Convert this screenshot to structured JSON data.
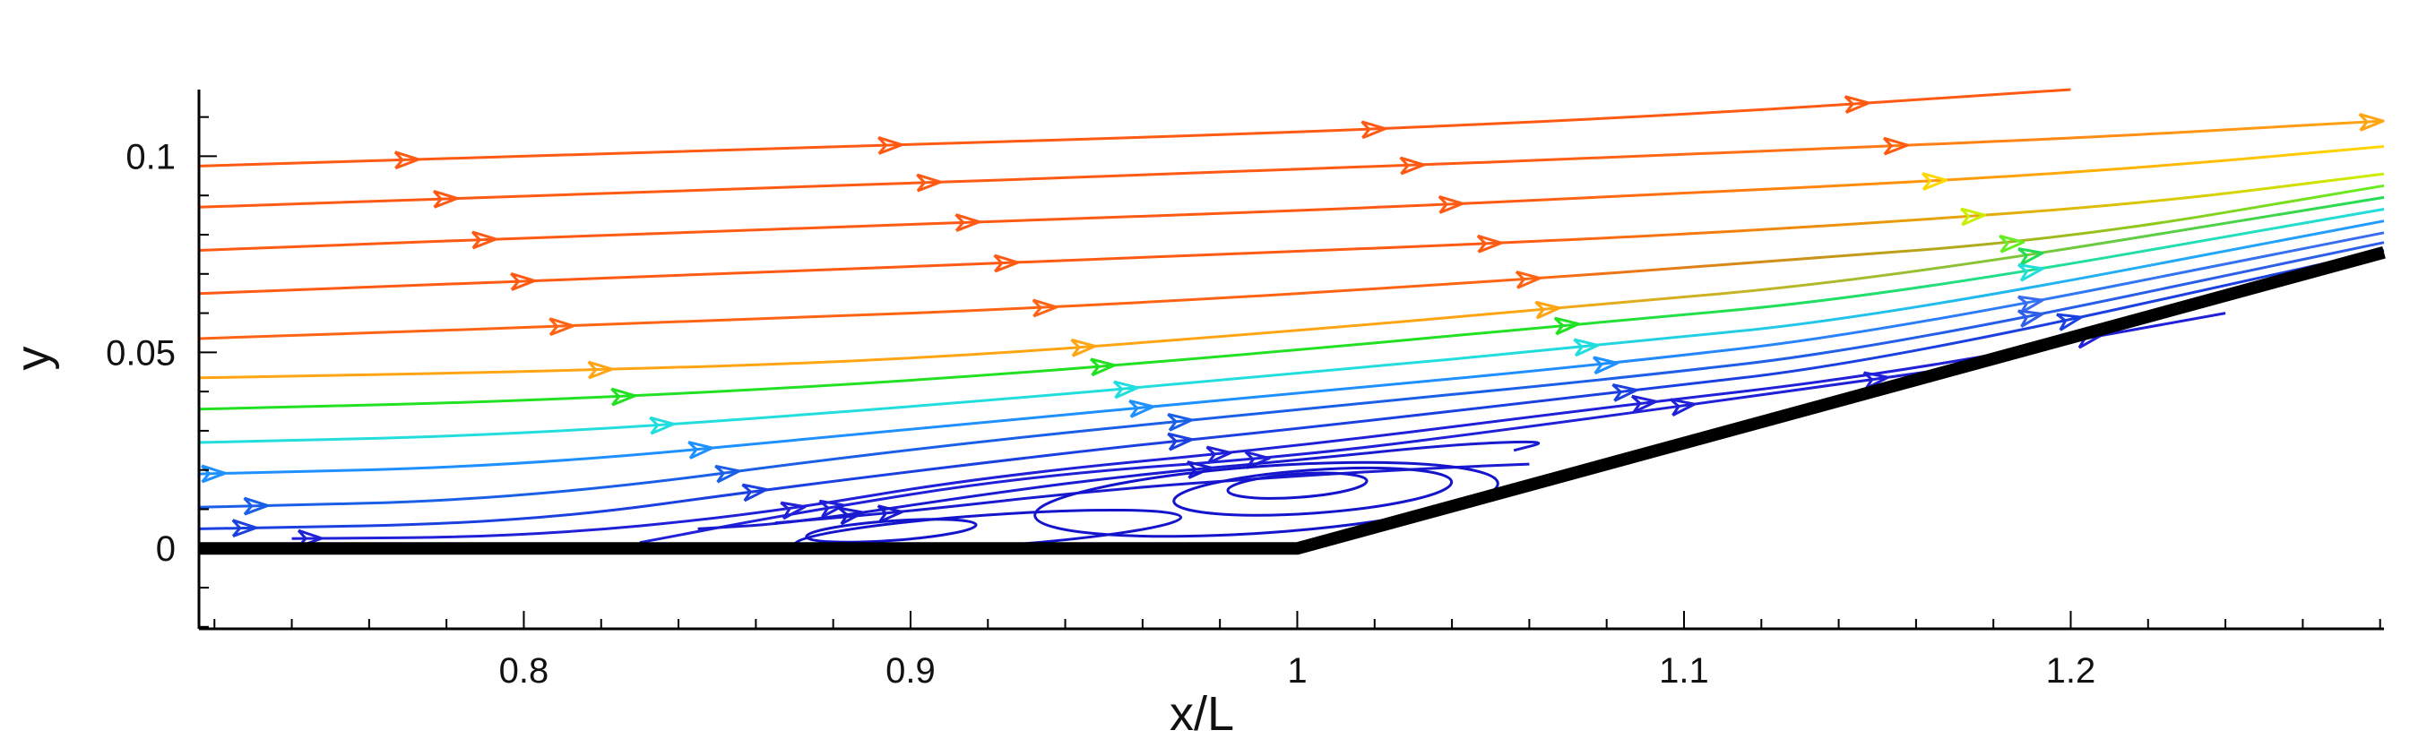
{
  "chart_data": {
    "type": "streamline",
    "title": "",
    "xlabel": "x/L",
    "ylabel": "y",
    "xlim": [
      0.716,
      1.281
    ],
    "ylim": [
      -0.0205,
      0.117
    ],
    "x_ticks": [
      {
        "value": 0.8,
        "label": "0.8"
      },
      {
        "value": 0.9,
        "label": "0.9"
      },
      {
        "value": 1.0,
        "label": "1"
      },
      {
        "value": 1.1,
        "label": "1.1"
      },
      {
        "value": 1.2,
        "label": "1.2"
      }
    ],
    "y_ticks": [
      {
        "value": 0.0,
        "label": "0"
      },
      {
        "value": 0.05,
        "label": "0.05"
      },
      {
        "value": 0.1,
        "label": "0.1"
      }
    ],
    "x_minor_step": 0.02,
    "y_minor_step": 0.01,
    "wall": [
      [
        0.716,
        0.0
      ],
      [
        1.0,
        0.0
      ],
      [
        1.281,
        0.0755
      ]
    ],
    "streamlines": [
      {
        "color": "#ff5a14",
        "points": [
          [
            0.716,
            0.0975
          ],
          [
            0.85,
            0.1015
          ],
          [
            1.0,
            0.106
          ],
          [
            1.1,
            0.1105
          ],
          [
            1.2,
            0.117
          ]
        ],
        "arrows": [
          0.77,
          0.895,
          1.02,
          1.145
        ]
      },
      {
        "color": "#ff5a14",
        "points": [
          [
            0.716,
            0.087
          ],
          [
            0.85,
            0.0915
          ],
          [
            1.0,
            0.0965
          ],
          [
            1.1,
            0.1005
          ],
          [
            1.2,
            0.1045
          ],
          [
            1.262,
            0.108
          ],
          [
            1.281,
            0.109
          ]
        ],
        "color_end": "#ffa514",
        "arrows": [
          0.78,
          0.905,
          1.03,
          1.155,
          1.278
        ]
      },
      {
        "color": "#ff5a14",
        "points": [
          [
            0.716,
            0.076
          ],
          [
            0.85,
            0.081
          ],
          [
            1.0,
            0.086
          ],
          [
            1.1,
            0.0905
          ],
          [
            1.18,
            0.0945
          ],
          [
            1.23,
            0.098
          ],
          [
            1.281,
            0.1025
          ]
        ],
        "color_end": "#ffd700",
        "arrows": [
          0.79,
          0.915,
          1.04,
          1.165
        ]
      },
      {
        "color": "#ff5a14",
        "points": [
          [
            0.716,
            0.065
          ],
          [
            0.85,
            0.07
          ],
          [
            0.97,
            0.0745
          ],
          [
            1.08,
            0.079
          ],
          [
            1.15,
            0.083
          ],
          [
            1.22,
            0.088
          ],
          [
            1.281,
            0.0955
          ]
        ],
        "color_end": "#ccee00",
        "arrows": [
          0.8,
          0.925,
          1.05,
          1.175
        ]
      },
      {
        "color": "#ff6414",
        "points": [
          [
            0.716,
            0.0535
          ],
          [
            0.85,
            0.058
          ],
          [
            0.95,
            0.062
          ],
          [
            1.05,
            0.068
          ],
          [
            1.12,
            0.073
          ],
          [
            1.2,
            0.079
          ],
          [
            1.281,
            0.0925
          ]
        ],
        "color_end": "#66ee22",
        "arrows": [
          0.81,
          0.935,
          1.06,
          1.185
        ]
      },
      {
        "color": "#ffa514",
        "points": [
          [
            0.716,
            0.0435
          ],
          [
            0.8,
            0.045
          ],
          [
            0.9,
            0.048
          ],
          [
            1.0,
            0.0555
          ],
          [
            1.07,
            0.0615
          ],
          [
            1.15,
            0.0685
          ],
          [
            1.281,
            0.0895
          ]
        ],
        "color_end": "#22dd55",
        "arrows": [
          0.82,
          0.945,
          1.065,
          1.19
        ]
      },
      {
        "color": "#22e022",
        "points": [
          [
            0.716,
            0.0355
          ],
          [
            0.8,
            0.0375
          ],
          [
            0.9,
            0.0425
          ],
          [
            1.0,
            0.0505
          ],
          [
            1.07,
            0.057
          ],
          [
            1.15,
            0.064
          ],
          [
            1.281,
            0.0865
          ]
        ],
        "color_end": "#22dddd",
        "arrows": [
          0.826,
          0.95,
          1.07,
          1.19
        ]
      },
      {
        "color": "#22dddd",
        "points": [
          [
            0.716,
            0.027
          ],
          [
            0.8,
            0.029
          ],
          [
            0.9,
            0.036
          ],
          [
            1.0,
            0.0445
          ],
          [
            1.08,
            0.052
          ],
          [
            1.15,
            0.059
          ],
          [
            1.281,
            0.0835
          ]
        ],
        "color_end": "#2299ff",
        "arrows": [
          0.836,
          0.956,
          1.075
        ]
      },
      {
        "color": "#1e90ff",
        "points": [
          [
            0.716,
            0.019
          ],
          [
            0.8,
            0.021
          ],
          [
            0.9,
            0.0305
          ],
          [
            1.0,
            0.0395
          ],
          [
            1.08,
            0.047
          ],
          [
            1.15,
            0.055
          ],
          [
            1.281,
            0.0805
          ]
        ],
        "color_end": "#3a6bef",
        "arrows": [
          0.72,
          0.846,
          0.96,
          1.08,
          1.19
        ]
      },
      {
        "color": "#1a5fe8",
        "points": [
          [
            0.716,
            0.0105
          ],
          [
            0.8,
            0.0125
          ],
          [
            0.9,
            0.0255
          ],
          [
            1.0,
            0.0355
          ],
          [
            1.08,
            0.043
          ],
          [
            1.15,
            0.051
          ],
          [
            1.281,
            0.078
          ]
        ],
        "color_end": "#2f5ee8",
        "arrows": [
          0.731,
          0.853,
          0.97,
          1.19
        ]
      },
      {
        "color": "#1a40e0",
        "points": [
          [
            0.716,
            0.005
          ],
          [
            0.8,
            0.0065
          ],
          [
            0.87,
            0.016
          ],
          [
            0.95,
            0.0255
          ],
          [
            1.0,
            0.0305
          ],
          [
            1.08,
            0.0395
          ],
          [
            1.15,
            0.0475
          ],
          [
            1.281,
            0.076
          ]
        ],
        "arrows": [
          0.728,
          0.86,
          0.97,
          1.085,
          1.2
        ]
      },
      {
        "color": "#2020d8",
        "points": [
          [
            0.74,
            0.0025
          ],
          [
            0.8,
            0.003
          ],
          [
            0.86,
            0.0085
          ],
          [
            0.92,
            0.0185
          ],
          [
            1.0,
            0.026
          ],
          [
            1.08,
            0.036
          ],
          [
            1.15,
            0.044
          ],
          [
            1.24,
            0.06
          ]
        ],
        "arrows": [
          0.745,
          0.87,
          0.98,
          1.09,
          1.205
        ]
      },
      {
        "color": "#2020d8",
        "points": [
          [
            0.83,
            0.0015
          ],
          [
            0.87,
            0.009
          ],
          [
            0.93,
            0.0185
          ],
          [
            1.0,
            0.0235
          ],
          [
            1.06,
            0.031
          ],
          [
            1.13,
            0.0405
          ],
          [
            1.17,
            0.046
          ]
        ],
        "arrows": [
          0.88,
          0.99,
          1.1,
          1.15
        ]
      },
      {
        "color": "#1a1ad0",
        "points": [
          [
            0.845,
            0.005
          ],
          [
            0.87,
            0.0065
          ],
          [
            0.92,
            0.014
          ],
          [
            0.96,
            0.019
          ],
          [
            1.0,
            0.0225
          ],
          [
            1.04,
            0.0265
          ],
          [
            1.066,
            0.0275
          ],
          [
            1.056,
            0.025
          ]
        ],
        "arrows": [
          0.885,
          0.975
        ]
      },
      {
        "color": "#1a1ad0",
        "points": [
          [
            0.865,
            0.0065
          ],
          [
            0.9,
            0.0095
          ],
          [
            0.95,
            0.015
          ],
          [
            1.0,
            0.0185
          ],
          [
            1.035,
            0.0205
          ],
          [
            1.06,
            0.0215
          ]
        ],
        "arrows": [
          0.895
        ]
      }
    ],
    "vortices": [
      {
        "color": "#1414cc",
        "cx": 0.992,
        "cy": 0.0125,
        "rx": 0.06,
        "ry": 0.0085
      },
      {
        "color": "#1414cc",
        "cx": 1.004,
        "cy": 0.0145,
        "rx": 0.036,
        "ry": 0.0055
      },
      {
        "color": "#1414cc",
        "cx": 1.0,
        "cy": 0.016,
        "rx": 0.018,
        "ry": 0.003
      },
      {
        "color": "#1414cc",
        "cx": 0.92,
        "cy": 0.0045,
        "rx": 0.05,
        "ry": 0.004
      },
      {
        "color": "#1414cc",
        "cx": 0.895,
        "cy": 0.0045,
        "rx": 0.022,
        "ry": 0.0025
      }
    ]
  }
}
